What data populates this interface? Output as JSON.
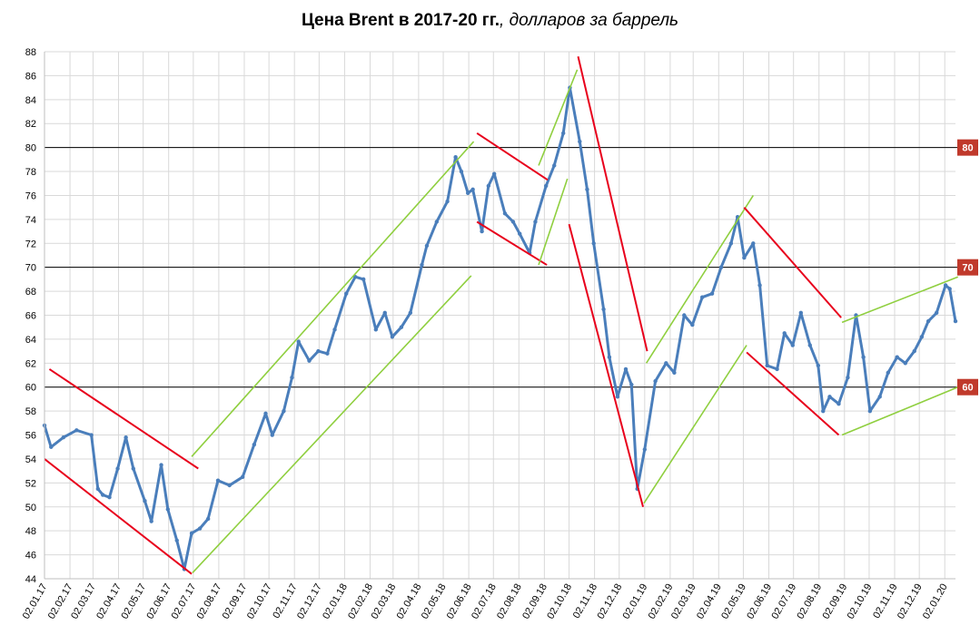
{
  "title": {
    "main": "Цена Brent в 2017-20 гг.",
    "suffix": ", долларов за баррель"
  },
  "chart_data": {
    "type": "line",
    "ylim": [
      44,
      88
    ],
    "yticks": [
      44,
      46,
      48,
      50,
      52,
      54,
      56,
      58,
      60,
      62,
      64,
      66,
      68,
      70,
      72,
      74,
      76,
      78,
      80,
      82,
      84,
      86,
      88
    ],
    "xlim": [
      "2017-01-02",
      "2020-01-15"
    ],
    "xtick_labels": [
      "02.01.17",
      "02.02.17",
      "02.03.17",
      "02.04.17",
      "02.05.17",
      "02.06.17",
      "02.07.17",
      "02.08.17",
      "02.09.17",
      "02.10.17",
      "02.11.17",
      "02.12.17",
      "02.01.18",
      "02.02.18",
      "02.03.18",
      "02.04.18",
      "02.05.18",
      "02.06.18",
      "02.07.18",
      "02.08.18",
      "02.09.18",
      "02.10.18",
      "02.11.18",
      "02.12.18",
      "02.01.19",
      "02.02.19",
      "02.03.19",
      "02.04.19",
      "02.05.19",
      "02.06.19",
      "02.07.19",
      "02.08.19",
      "02.09.19",
      "02.10.19",
      "02.11.19",
      "02.12.19",
      "02.01.20"
    ],
    "grid": true,
    "series": [
      {
        "color": "#4a7ebb",
        "x": [
          "2017-01-02",
          "2017-01-10",
          "2017-01-25",
          "2017-02-10",
          "2017-02-28",
          "2017-03-08",
          "2017-03-14",
          "2017-03-22",
          "2017-04-01",
          "2017-04-11",
          "2017-04-20",
          "2017-05-04",
          "2017-05-12",
          "2017-05-24",
          "2017-06-01",
          "2017-06-12",
          "2017-06-21",
          "2017-06-30",
          "2017-07-10",
          "2017-07-20",
          "2017-08-01",
          "2017-08-15",
          "2017-08-31",
          "2017-09-14",
          "2017-09-28",
          "2017-10-06",
          "2017-10-20",
          "2017-10-30",
          "2017-11-07",
          "2017-11-20",
          "2017-12-01",
          "2017-12-12",
          "2017-12-21",
          "2018-01-04",
          "2018-01-15",
          "2018-01-25",
          "2018-02-09",
          "2018-02-20",
          "2018-03-01",
          "2018-03-12",
          "2018-03-23",
          "2018-04-06",
          "2018-04-12",
          "2018-04-24",
          "2018-05-07",
          "2018-05-17",
          "2018-05-24",
          "2018-06-01",
          "2018-06-07",
          "2018-06-18",
          "2018-06-26",
          "2018-07-03",
          "2018-07-16",
          "2018-07-26",
          "2018-08-03",
          "2018-08-15",
          "2018-08-22",
          "2018-09-04",
          "2018-09-14",
          "2018-09-25",
          "2018-10-03",
          "2018-10-15",
          "2018-10-24",
          "2018-11-01",
          "2018-11-13",
          "2018-11-20",
          "2018-11-30",
          "2018-12-10",
          "2018-12-17",
          "2018-12-24",
          "2019-01-02",
          "2019-01-15",
          "2019-01-28",
          "2019-02-07",
          "2019-02-19",
          "2019-03-01",
          "2019-03-13",
          "2019-03-25",
          "2019-04-05",
          "2019-04-17",
          "2019-04-25",
          "2019-05-03",
          "2019-05-14",
          "2019-05-22",
          "2019-05-31",
          "2019-06-12",
          "2019-06-21",
          "2019-07-01",
          "2019-07-11",
          "2019-07-22",
          "2019-08-01",
          "2019-08-07",
          "2019-08-15",
          "2019-08-26",
          "2019-09-06",
          "2019-09-16",
          "2019-09-25",
          "2019-10-03",
          "2019-10-15",
          "2019-10-25",
          "2019-11-05",
          "2019-11-15",
          "2019-11-26",
          "2019-12-05",
          "2019-12-13",
          "2019-12-23",
          "2020-01-03",
          "2020-01-08",
          "2020-01-15"
        ],
        "y": [
          56.8,
          55.0,
          55.8,
          56.4,
          56.0,
          51.5,
          51.0,
          50.8,
          53.2,
          55.8,
          53.2,
          50.5,
          48.8,
          53.5,
          49.8,
          47.2,
          44.8,
          47.8,
          48.2,
          49.0,
          52.2,
          51.8,
          52.5,
          55.2,
          57.8,
          56.0,
          58.0,
          60.8,
          63.8,
          62.2,
          63.0,
          62.8,
          64.8,
          67.8,
          69.2,
          69.0,
          64.8,
          66.2,
          64.2,
          65.0,
          66.2,
          70.2,
          71.8,
          73.8,
          75.5,
          79.2,
          78.0,
          76.2,
          76.5,
          73.0,
          76.8,
          77.8,
          74.5,
          73.8,
          72.8,
          71.2,
          73.8,
          76.8,
          78.5,
          81.2,
          85.0,
          80.5,
          76.5,
          72.0,
          66.5,
          62.5,
          59.2,
          61.5,
          60.2,
          51.5,
          54.8,
          60.5,
          62.0,
          61.2,
          66.0,
          65.2,
          67.5,
          67.8,
          70.0,
          72.0,
          74.2,
          70.8,
          72.0,
          68.5,
          61.8,
          61.5,
          64.5,
          63.5,
          66.2,
          63.5,
          61.8,
          58.0,
          59.2,
          58.6,
          60.8,
          66.0,
          62.5,
          58.0,
          59.2,
          61.2,
          62.5,
          62.0,
          63.0,
          64.2,
          65.5,
          66.2,
          68.5,
          68.2,
          65.5
        ]
      }
    ],
    "horizontal_lines": [
      {
        "value": 80,
        "label": "80"
      },
      {
        "value": 70,
        "label": "70"
      },
      {
        "value": 60,
        "label": "60"
      }
    ],
    "trendlines": [
      {
        "color": "#e8001c",
        "from": [
          "2017-01-08",
          61.5
        ],
        "to": [
          "2017-07-08",
          53.2
        ]
      },
      {
        "color": "#e8001c",
        "from": [
          "2017-01-02",
          54.0
        ],
        "to": [
          "2017-06-30",
          44.4
        ]
      },
      {
        "color": "#8fcf3f",
        "from": [
          "2017-06-30",
          54.2
        ],
        "to": [
          "2018-06-08",
          80.5
        ]
      },
      {
        "color": "#8fcf3f",
        "from": [
          "2017-07-01",
          44.5
        ],
        "to": [
          "2018-06-05",
          69.3
        ]
      },
      {
        "color": "#e8001c",
        "from": [
          "2018-06-12",
          81.2
        ],
        "to": [
          "2018-09-06",
          77.3
        ]
      },
      {
        "color": "#e8001c",
        "from": [
          "2018-06-12",
          73.8
        ],
        "to": [
          "2018-09-05",
          70.2
        ]
      },
      {
        "color": "#8fcf3f",
        "from": [
          "2018-08-26",
          78.5
        ],
        "to": [
          "2018-10-12",
          86.5
        ]
      },
      {
        "color": "#8fcf3f",
        "from": [
          "2018-08-26",
          70.2
        ],
        "to": [
          "2018-09-30",
          77.4
        ]
      },
      {
        "color": "#e8001c",
        "from": [
          "2018-10-13",
          87.6
        ],
        "to": [
          "2019-01-05",
          63.0
        ]
      },
      {
        "color": "#e8001c",
        "from": [
          "2018-10-02",
          73.6
        ],
        "to": [
          "2018-12-31",
          50.0
        ]
      },
      {
        "color": "#8fcf3f",
        "from": [
          "2019-01-01",
          50.3
        ],
        "to": [
          "2019-05-06",
          63.5
        ]
      },
      {
        "color": "#8fcf3f",
        "from": [
          "2019-01-04",
          62.0
        ],
        "to": [
          "2019-05-14",
          76.0
        ]
      },
      {
        "color": "#e8001c",
        "from": [
          "2019-05-03",
          75.0
        ],
        "to": [
          "2019-08-29",
          65.8
        ]
      },
      {
        "color": "#e8001c",
        "from": [
          "2019-05-06",
          62.9
        ],
        "to": [
          "2019-08-26",
          56.0
        ]
      },
      {
        "color": "#8fcf3f",
        "from": [
          "2019-08-30",
          65.4
        ],
        "to": [
          "2020-01-18",
          69.2
        ]
      },
      {
        "color": "#8fcf3f",
        "from": [
          "2019-08-30",
          56.0
        ],
        "to": [
          "2020-01-18",
          60.0
        ]
      }
    ]
  }
}
